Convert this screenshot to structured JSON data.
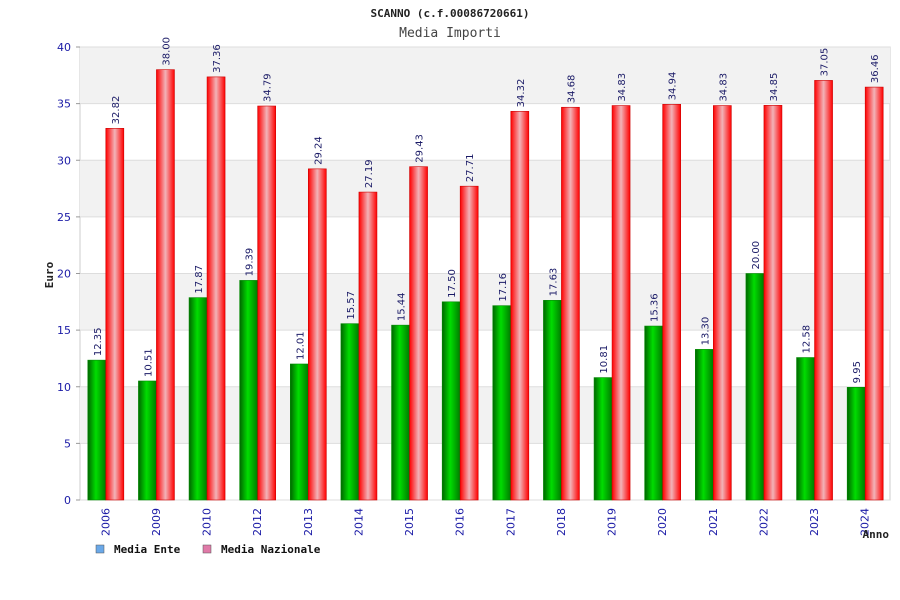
{
  "chart_data": {
    "type": "bar",
    "title": "SCANNO (c.f.00086720661)",
    "subtitle": "Media Importi",
    "ylabel": "Euro",
    "xlabel": "Anno",
    "ylim": [
      0,
      40
    ],
    "yticks": [
      0,
      5,
      10,
      15,
      20,
      25,
      30,
      35,
      40
    ],
    "grid": true,
    "legend_position": "bottom-left",
    "categories": [
      "2006",
      "2009",
      "2010",
      "2012",
      "2013",
      "2014",
      "2015",
      "2016",
      "2017",
      "2018",
      "2019",
      "2020",
      "2021",
      "2022",
      "2023",
      "2024"
    ],
    "series": [
      {
        "name": "Media Ente",
        "color": "#00c000",
        "values": [
          12.35,
          10.51,
          17.87,
          19.39,
          12.01,
          15.57,
          15.44,
          17.5,
          17.16,
          17.63,
          10.81,
          15.36,
          13.3,
          20.0,
          12.58,
          9.95
        ],
        "labels": [
          "12.35",
          "10.51",
          "17.87",
          "19.39",
          "12.01",
          "15.57",
          "15.44",
          "17.50",
          "17.16",
          "17.63",
          "10.81",
          "15.36",
          "13.30",
          "20.00",
          "12.58",
          "9.95"
        ]
      },
      {
        "name": "Media Nazionale",
        "color": "#ff1a1a",
        "values": [
          32.82,
          38.0,
          37.36,
          34.79,
          29.24,
          27.19,
          29.43,
          27.71,
          34.32,
          34.68,
          34.83,
          34.94,
          34.83,
          34.85,
          37.05,
          36.46
        ],
        "labels": [
          "32.82",
          "38.00",
          "37.36",
          "34.79",
          "29.24",
          "27.19",
          "29.43",
          "27.71",
          "34.32",
          "34.68",
          "34.83",
          "34.94",
          "34.83",
          "34.85",
          "37.05",
          "36.46"
        ]
      }
    ],
    "legend": [
      {
        "label": "Media Ente",
        "swatch_color": "#6aa8e8"
      },
      {
        "label": "Media Nazionale",
        "swatch_color": "#e07aa8"
      }
    ]
  }
}
